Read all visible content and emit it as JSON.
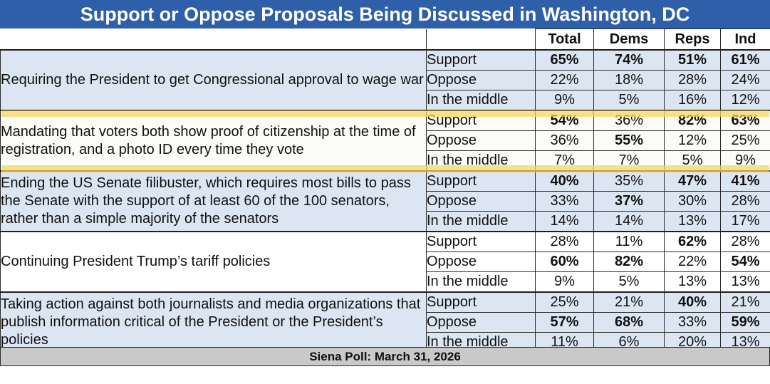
{
  "title": "Support or Oppose Proposals Being Discussed in Washington, DC",
  "headers": {
    "blank": "",
    "blank2": "",
    "total": "Total",
    "dems": "Dems",
    "reps": "Reps",
    "ind": "Ind"
  },
  "questions": [
    {
      "text": "Requiring the President to get Congressional approval to wage war",
      "rows": [
        {
          "option": "Support",
          "total": "65%",
          "dems": "74%",
          "reps": "51%",
          "ind": "61%"
        },
        {
          "option": "Oppose",
          "total": "22%",
          "dems": "18%",
          "reps": "28%",
          "ind": "24%"
        },
        {
          "option": "In the middle",
          "total": "9%",
          "dems": "5%",
          "reps": "16%",
          "ind": "12%"
        }
      ]
    },
    {
      "text": "Mandating that voters both show proof of citizenship at the time of registration, and a photo ID every time they vote",
      "rows": [
        {
          "option": "Support",
          "total": "54%",
          "dems": "36%",
          "reps": "82%",
          "ind": "63%"
        },
        {
          "option": "Oppose",
          "total": "36%",
          "dems": "55%",
          "reps": "12%",
          "ind": "25%"
        },
        {
          "option": "In the middle",
          "total": "7%",
          "dems": "7%",
          "reps": "5%",
          "ind": "9%"
        }
      ]
    },
    {
      "text": "Ending the US Senate filibuster, which requires most bills to pass the Senate with the support of at least 60 of the 100 senators, rather than a simple majority of the senators",
      "rows": [
        {
          "option": "Support",
          "total": "40%",
          "dems": "35%",
          "reps": "47%",
          "ind": "41%"
        },
        {
          "option": "Oppose",
          "total": "33%",
          "dems": "37%",
          "reps": "30%",
          "ind": "28%"
        },
        {
          "option": "In the middle",
          "total": "14%",
          "dems": "14%",
          "reps": "13%",
          "ind": "17%"
        }
      ]
    },
    {
      "text": "Continuing President Trump’s tariff policies",
      "rows": [
        {
          "option": "Support",
          "total": "28%",
          "dems": "11%",
          "reps": "62%",
          "ind": "28%"
        },
        {
          "option": "Oppose",
          "total": "60%",
          "dems": "82%",
          "reps": "22%",
          "ind": "54%"
        },
        {
          "option": "In the middle",
          "total": "9%",
          "dems": "5%",
          "reps": "13%",
          "ind": "13%"
        }
      ]
    },
    {
      "text": "Taking action against both journalists and media organizations that publish information critical of the President or the President’s policies",
      "rows": [
        {
          "option": "Support",
          "total": "25%",
          "dems": "21%",
          "reps": "40%",
          "ind": "21%"
        },
        {
          "option": "Oppose",
          "total": "57%",
          "dems": "68%",
          "reps": "33%",
          "ind": "59%"
        },
        {
          "option": "In the middle",
          "total": "11%",
          "dems": "6%",
          "reps": "20%",
          "ind": "13%"
        }
      ]
    }
  ],
  "footer": "Siena Poll: March 31, 2026",
  "colors": {
    "title_bg": "#2e5fa8",
    "shade": "#dce6f2",
    "highlight": "#f7d65c",
    "footer_bg": "#c9c9c9"
  }
}
